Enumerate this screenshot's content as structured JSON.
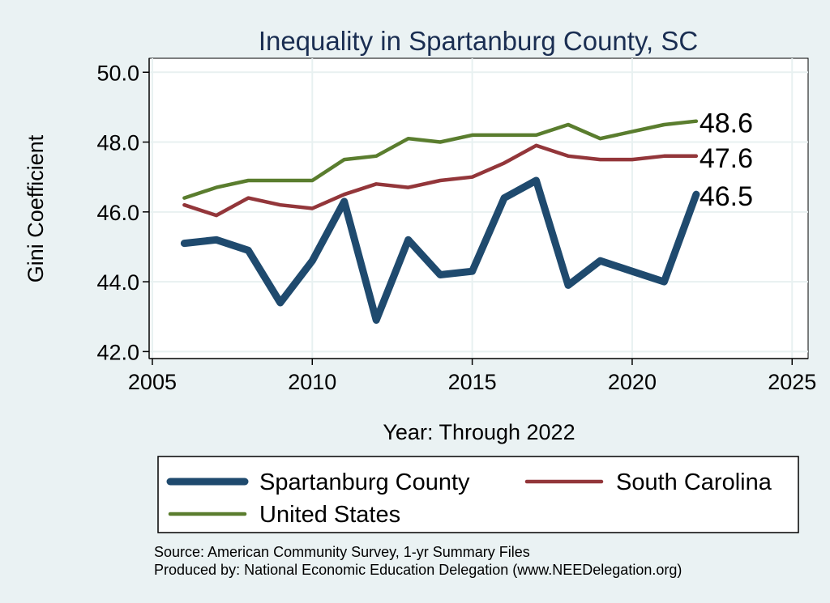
{
  "chart_data": {
    "type": "line",
    "title": "Inequality in Spartanburg County, SC",
    "xlabel": "Year: Through 2022",
    "ylabel": "Gini Coefficient",
    "xlim": [
      2004.9,
      2025.5
    ],
    "ylim": [
      41.8,
      50.4
    ],
    "xticks": [
      2005,
      2010,
      2015,
      2020,
      2025
    ],
    "yticks": [
      42.0,
      44.0,
      46.0,
      48.0,
      50.0
    ],
    "ytick_labels": [
      "42.0",
      "44.0",
      "46.0",
      "48.0",
      "50.0"
    ],
    "x": [
      2006,
      2007,
      2008,
      2009,
      2010,
      2011,
      2012,
      2013,
      2014,
      2015,
      2016,
      2017,
      2018,
      2019,
      2020,
      2021,
      2022
    ],
    "series": [
      {
        "name": "Spartanburg County",
        "color": "#1f4a6e",
        "values": [
          45.1,
          45.2,
          44.9,
          43.4,
          44.6,
          46.3,
          42.9,
          45.2,
          44.2,
          44.3,
          46.4,
          46.9,
          43.9,
          44.6,
          44.3,
          44.0,
          46.5
        ],
        "end_label": "46.5"
      },
      {
        "name": "South Carolina",
        "color": "#93363a",
        "values": [
          46.2,
          45.9,
          46.4,
          46.2,
          46.1,
          46.5,
          46.8,
          46.7,
          46.9,
          47.0,
          47.4,
          47.9,
          47.6,
          47.5,
          47.5,
          47.6,
          47.6
        ],
        "end_label": "47.6"
      },
      {
        "name": "United States",
        "color": "#5a7d2e",
        "values": [
          46.4,
          46.7,
          46.9,
          46.9,
          46.9,
          47.5,
          47.6,
          48.1,
          48.0,
          48.2,
          48.2,
          48.2,
          48.5,
          48.1,
          48.3,
          48.5,
          48.6
        ],
        "end_label": "48.6"
      }
    ],
    "legend": {
      "position": "bottom",
      "entries": [
        "Spartanburg County",
        "South Carolina",
        "United States"
      ]
    },
    "grid": true
  },
  "notes": {
    "source": "Source: American Community Survey, 1-yr Summary Files",
    "produced": "Produced by: National Economic Education Delegation (www.NEEDelegation.org)"
  },
  "colors": {
    "background": "#eaf2f3",
    "plot_background": "#ffffff",
    "grid": "#e8f1f1",
    "title": "#1a2e52"
  }
}
